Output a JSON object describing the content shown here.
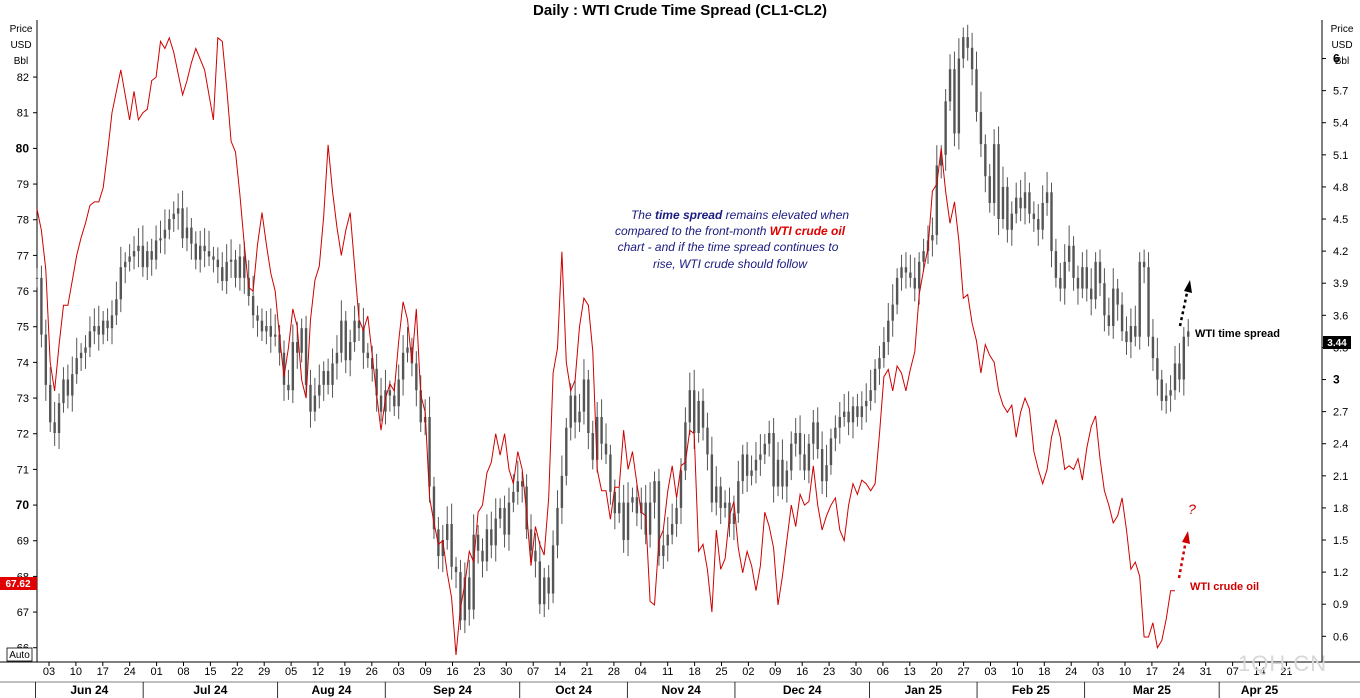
{
  "chart_data": {
    "type": "line",
    "title": "Daily : WTI Crude Time Spread (CL1-CL2)",
    "left_axis": {
      "unit_lines": [
        "Price",
        "USD",
        "Bbl"
      ],
      "range": [
        65.6,
        83.6
      ],
      "ticks": [
        "66",
        "67",
        "68",
        "69",
        "70",
        "71",
        "72",
        "73",
        "74",
        "75",
        "76",
        "77",
        "78",
        "79",
        "80",
        "81",
        "82"
      ],
      "bold_ticks": [
        "70",
        "80"
      ],
      "current_value": "67.62",
      "auto_label": "Auto"
    },
    "right_axis": {
      "unit_lines": [
        "Price",
        "USD",
        "Bbl"
      ],
      "range": [
        0.36,
        6.36
      ],
      "ticks": [
        "0.6",
        "0.9",
        "1.2",
        "1.5",
        "1.8",
        "2.1",
        "2.4",
        "2.7",
        "3",
        "3.3",
        "3.6",
        "3.9",
        "4.2",
        "4.5",
        "4.8",
        "5.1",
        "5.4",
        "5.7",
        "6"
      ],
      "bold_ticks": [
        "3",
        "6"
      ],
      "current_value": "3.44"
    },
    "x_axis": {
      "day_ticks": [
        "03",
        "10",
        "17",
        "24",
        "01",
        "08",
        "15",
        "22",
        "29",
        "05",
        "12",
        "19",
        "26",
        "03",
        "09",
        "16",
        "23",
        "30",
        "07",
        "14",
        "21",
        "28",
        "04",
        "11",
        "18",
        "25",
        "02",
        "09",
        "16",
        "23",
        "30",
        "06",
        "13",
        "20",
        "27",
        "03",
        "10",
        "18",
        "24",
        "03",
        "10",
        "17",
        "24",
        "31",
        "07",
        "14",
        "21"
      ],
      "months": [
        "Jun 24",
        "Jul 24",
        "Aug 24",
        "Sep 24",
        "Oct 24",
        "Nov 24",
        "Dec 24",
        "Jan 25",
        "Feb 25",
        "Mar 25",
        "Apr 25"
      ]
    },
    "series": [
      {
        "name": "WTI crude oil",
        "axis": "left",
        "color": "#d00000",
        "style": "line",
        "values": [
          78.3,
          77.7,
          76.6,
          74.0,
          73.2,
          74.5,
          75.6,
          75.6,
          76.3,
          77.0,
          77.5,
          77.9,
          78.4,
          78.5,
          78.5,
          78.9,
          79.9,
          81.0,
          81.6,
          82.2,
          81.5,
          80.8,
          81.6,
          80.8,
          81.0,
          81.1,
          81.9,
          82.0,
          83.0,
          82.8,
          83.1,
          82.7,
          82.1,
          81.5,
          81.9,
          82.4,
          82.8,
          82.5,
          82.2,
          81.5,
          80.8,
          83.1,
          83.0,
          81.7,
          80.2,
          79.9,
          78.7,
          77.3,
          76.1,
          76.0,
          77.3,
          78.2,
          77.3,
          76.5,
          76.0,
          74.7,
          73.6,
          74.4,
          75.5,
          75.0,
          73.5,
          73.0,
          75.2,
          76.3,
          76.7,
          78.1,
          80.1,
          78.8,
          77.8,
          77.0,
          77.7,
          78.2,
          76.7,
          75.2,
          74.9,
          75.3,
          74.2,
          73.1,
          72.1,
          73.0,
          73.4,
          73.2,
          74.6,
          75.7,
          75.2,
          74.0,
          75.5,
          73.1,
          72.6,
          70.2,
          69.5,
          68.9,
          69.0,
          68.1,
          67.4,
          65.8,
          67.1,
          67.8,
          68.7,
          68.4,
          69.8,
          70.0,
          70.9,
          71.2,
          72.0,
          71.4,
          72.0,
          71.0,
          70.6,
          71.5,
          71.0,
          69.8,
          68.3,
          69.4,
          68.9,
          68.6,
          70.2,
          73.7,
          74.4,
          77.1,
          74.0,
          73.2,
          73.5,
          75.0,
          75.8,
          75.6,
          74.3,
          71.0,
          70.4,
          70.4,
          69.6,
          70.5,
          70.5,
          72.1,
          71.0,
          71.5,
          70.6,
          69.8,
          69.7,
          67.3,
          67.2,
          69.0,
          69.3,
          70.4,
          71.1,
          70.2,
          71.1,
          71.2,
          72.1,
          72.0,
          68.7,
          68.9,
          68.2,
          67.0,
          69.3,
          68.2,
          68.5,
          69.7,
          70.1,
          68.8,
          68.1,
          68.7,
          68.3,
          67.6,
          68.3,
          69.8,
          69.4,
          68.8,
          67.2,
          68.0,
          69.0,
          70.0,
          69.4,
          70.3,
          70.0,
          70.1,
          71.1,
          70.0,
          69.3,
          69.7,
          70.0,
          70.2,
          69.3,
          69.0,
          70.0,
          70.6,
          70.3,
          70.7,
          70.6,
          70.4,
          70.6,
          72.0,
          73.6,
          73.8,
          73.2,
          73.9,
          73.7,
          73.2,
          73.8,
          74.3,
          75.9,
          76.6,
          77.2,
          78.8,
          79.0,
          80.0,
          78.8,
          77.9,
          78.5,
          77.4,
          75.8,
          75.9,
          75.1,
          74.6,
          73.7,
          74.5,
          74.2,
          74.0,
          73.2,
          72.8,
          72.6,
          72.8,
          71.9,
          72.6,
          73.0,
          72.7,
          71.5,
          71.0,
          70.6,
          71.0,
          71.9,
          72.4,
          71.9,
          71.0,
          71.1,
          71.0,
          71.3,
          70.7,
          71.6,
          72.2,
          72.5,
          71.3,
          70.4,
          70.0,
          69.5,
          69.7,
          70.2,
          69.3,
          68.2,
          68.4,
          68.0,
          66.3,
          66.3,
          66.7,
          66.0,
          66.2,
          66.8,
          67.6,
          67.6
        ]
      },
      {
        "name": "WTI time spread",
        "axis": "right",
        "color": "#555555",
        "style": "candlestick",
        "values": [
          3.95,
          3.42,
          2.95,
          2.6,
          2.5,
          2.78,
          3.0,
          2.85,
          3.05,
          3.2,
          3.25,
          3.3,
          3.45,
          3.5,
          3.42,
          3.55,
          3.48,
          3.6,
          3.75,
          4.05,
          4.1,
          4.15,
          4.2,
          4.25,
          4.05,
          4.2,
          4.12,
          4.3,
          4.32,
          4.4,
          4.5,
          4.55,
          4.6,
          4.32,
          4.42,
          4.27,
          4.12,
          4.25,
          4.2,
          4.15,
          4.12,
          4.05,
          3.92,
          4.1,
          4.12,
          3.95,
          4.15,
          3.95,
          3.78,
          3.6,
          3.55,
          3.45,
          3.5,
          3.4,
          3.42,
          3.25,
          2.95,
          2.9,
          3.35,
          3.25,
          3.48,
          2.95,
          2.7,
          2.85,
          2.95,
          3.08,
          2.95,
          3.15,
          3.25,
          3.55,
          3.18,
          3.35,
          3.55,
          3.48,
          3.25,
          3.2,
          3.1,
          2.85,
          2.7,
          2.9,
          2.85,
          2.75,
          3.0,
          3.25,
          3.3,
          3.15,
          2.9,
          2.6,
          2.65,
          2.0,
          1.6,
          1.35,
          1.5,
          1.65,
          1.25,
          1.2,
          0.75,
          1.15,
          0.85,
          1.55,
          1.4,
          1.3,
          1.6,
          1.45,
          1.7,
          1.8,
          1.55,
          1.85,
          1.95,
          2.05,
          2.0,
          1.6,
          1.4,
          1.3,
          0.9,
          1.15,
          1.0,
          1.45,
          1.8,
          2.1,
          2.55,
          2.85,
          2.6,
          2.7,
          3.0,
          2.5,
          2.25,
          2.65,
          2.4,
          2.3,
          1.95,
          1.75,
          1.85,
          1.5,
          1.85,
          1.9,
          1.75,
          1.85,
          1.55,
          1.85,
          2.05,
          1.35,
          1.45,
          1.55,
          1.65,
          1.8,
          2.15,
          2.6,
          2.9,
          2.5,
          2.8,
          2.55,
          2.3,
          1.85,
          2.0,
          1.8,
          1.85,
          1.65,
          1.75,
          2.05,
          2.3,
          2.1,
          2.15,
          2.25,
          2.3,
          2.4,
          2.5,
          2.0,
          2.25,
          2.0,
          2.15,
          2.4,
          2.5,
          2.3,
          2.15,
          2.4,
          2.6,
          2.35,
          2.05,
          2.2,
          2.45,
          2.55,
          2.65,
          2.7,
          2.6,
          2.75,
          2.65,
          2.75,
          2.8,
          2.9,
          3.1,
          3.2,
          3.35,
          3.55,
          3.7,
          3.95,
          4.05,
          4.0,
          3.95,
          3.85,
          4.1,
          4.2,
          4.3,
          4.35,
          5.0,
          5.1,
          5.6,
          5.9,
          5.3,
          6.0,
          6.2,
          6.1,
          5.9,
          5.5,
          5.2,
          4.9,
          4.65,
          5.2,
          4.5,
          4.8,
          4.4,
          4.55,
          4.7,
          4.6,
          4.75,
          4.55,
          4.5,
          4.4,
          4.65,
          4.75,
          4.2,
          3.95,
          3.85,
          4.1,
          4.25,
          3.95,
          3.85,
          4.05,
          3.85,
          3.75,
          4.1,
          3.9,
          3.6,
          3.5,
          3.85,
          3.7,
          3.45,
          3.35,
          3.5,
          3.4,
          4.1,
          4.05,
          3.4,
          3.2,
          3.0,
          2.8,
          2.85,
          2.9,
          3.15,
          3.0,
          3.4,
          3.45
        ]
      }
    ],
    "annotation": {
      "segments": [
        {
          "text": "The ",
          "style": "normal"
        },
        {
          "text": "time spread",
          "style": "bold"
        },
        {
          "text": " remains elevated when",
          "style": "normal"
        },
        {
          "text": "compared to the front-month ",
          "style": "normal"
        },
        {
          "text": "WTI crude oil",
          "style": "red"
        },
        {
          "text": "chart - and if the time spread continues to",
          "style": "normal"
        },
        {
          "text": "rise, WTI crude should follow",
          "style": "normal"
        }
      ]
    },
    "labels": {
      "spread": "WTI time spread",
      "crude": "WTI crude oil",
      "question": "?"
    },
    "watermark": "1QH.CN",
    "colors": {
      "crude": "#d00000",
      "spread": "#555555",
      "axis": "#000000",
      "note": "#1a1a80"
    },
    "grid": false,
    "legend": "none"
  }
}
